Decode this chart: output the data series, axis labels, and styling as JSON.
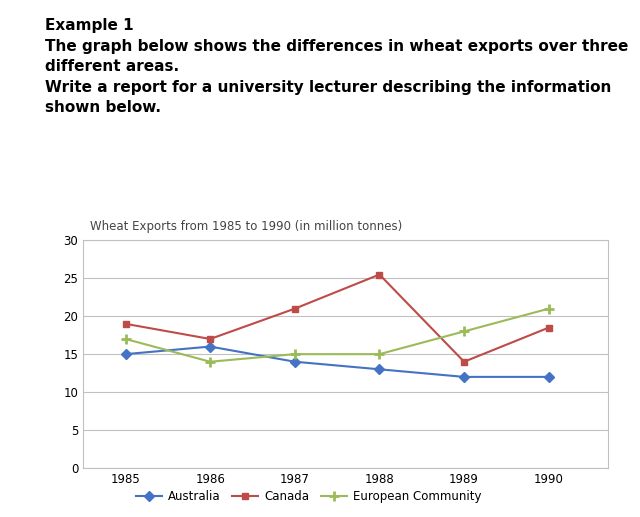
{
  "title": "Wheat Exports from 1985 to 1990 (in million tonnes)",
  "header_line1": "Example 1",
  "header_line2": "The graph below shows the differences in wheat exports over three\ndifferent areas.",
  "header_line3": "Write a report for a university lecturer describing the information\nshown below.",
  "years": [
    1985,
    1986,
    1987,
    1988,
    1989,
    1990
  ],
  "australia": [
    15,
    16,
    14,
    13,
    12,
    12
  ],
  "canada": [
    19,
    17,
    21,
    25.5,
    14,
    18.5
  ],
  "european_community": [
    17,
    14,
    15,
    15,
    18,
    21
  ],
  "australia_color": "#4472C4",
  "canada_color": "#BE4B48",
  "ec_color": "#9BBB59",
  "ylim": [
    0,
    30
  ],
  "yticks": [
    0,
    5,
    10,
    15,
    20,
    25,
    30
  ],
  "bg_color": "#FFFFFF",
  "plot_bg_color": "#FFFFFF",
  "grid_color": "#C0C0C0",
  "box_color": "#C0C0C0",
  "title_fontsize": 8.5,
  "header_fontsize": 11,
  "tick_fontsize": 8.5,
  "legend_fontsize": 8.5
}
